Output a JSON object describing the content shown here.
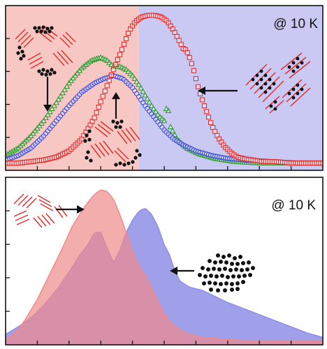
{
  "colors": {
    "red": "#e03030",
    "green": "#2f9a2f",
    "blue": "#3a48d8",
    "bg_red": "#f7c7c3",
    "bg_blue": "#c9c9f4",
    "fill_red": "#f08a8a",
    "fill_blue": "#8e8ee6",
    "black": "#111111"
  },
  "chart_data": [
    {
      "type": "scatter",
      "panel": "top",
      "annotation": "@ 10 K",
      "xlabel": "",
      "ylabel": "",
      "xlim": [
        0,
        1
      ],
      "ylim": [
        0,
        1
      ],
      "shaded_regions": [
        {
          "x": [
            0,
            0.42
          ],
          "color": "#f7c7c3"
        },
        {
          "x": [
            0.42,
            1
          ],
          "color": "#c9c9f4"
        }
      ],
      "series": [
        {
          "marker": "square-open",
          "color": "#e03030",
          "x": [
            0.0,
            0.04,
            0.08,
            0.12,
            0.16,
            0.2,
            0.24,
            0.28,
            0.31,
            0.34,
            0.37,
            0.39,
            0.41,
            0.43,
            0.45,
            0.47,
            0.49,
            0.51,
            0.53,
            0.55,
            0.56,
            0.57,
            0.58,
            0.59,
            0.6,
            0.61,
            0.63,
            0.65,
            0.67,
            0.69,
            0.71,
            0.73,
            0.75,
            0.78,
            0.81,
            0.85,
            0.9,
            0.95,
            1.0
          ],
          "y": [
            0.02,
            0.02,
            0.03,
            0.04,
            0.06,
            0.1,
            0.18,
            0.32,
            0.48,
            0.64,
            0.79,
            0.9,
            0.96,
            0.99,
            1.0,
            1.0,
            0.99,
            0.96,
            0.9,
            0.82,
            0.78,
            0.77,
            0.72,
            0.66,
            0.58,
            0.5,
            0.38,
            0.27,
            0.19,
            0.13,
            0.09,
            0.06,
            0.05,
            0.04,
            0.03,
            0.03,
            0.02,
            0.02,
            0.02
          ]
        },
        {
          "marker": "triangle-open",
          "color": "#2f9a2f",
          "x": [
            0.0,
            0.04,
            0.08,
            0.12,
            0.16,
            0.2,
            0.24,
            0.27,
            0.3,
            0.32,
            0.34,
            0.36,
            0.38,
            0.4,
            0.42,
            0.44,
            0.46,
            0.48,
            0.5,
            0.51,
            0.52,
            0.54,
            0.57,
            0.61,
            0.66,
            0.72,
            0.8,
            0.9,
            1.0
          ],
          "y": [
            0.07,
            0.12,
            0.2,
            0.3,
            0.42,
            0.55,
            0.65,
            0.7,
            0.72,
            0.7,
            0.66,
            0.66,
            0.64,
            0.6,
            0.54,
            0.47,
            0.4,
            0.34,
            0.3,
            0.42,
            0.26,
            0.18,
            0.12,
            0.08,
            0.05,
            0.03,
            0.02,
            0.02,
            0.02
          ]
        },
        {
          "marker": "circle-open",
          "color": "#3a48d8",
          "x": [
            0.0,
            0.04,
            0.08,
            0.12,
            0.16,
            0.2,
            0.24,
            0.28,
            0.31,
            0.34,
            0.37,
            0.4,
            0.42,
            0.44,
            0.47,
            0.5,
            0.53,
            0.56,
            0.6,
            0.65,
            0.7,
            0.76,
            0.84,
            0.92,
            1.0
          ],
          "y": [
            0.04,
            0.07,
            0.12,
            0.2,
            0.3,
            0.4,
            0.49,
            0.55,
            0.58,
            0.6,
            0.58,
            0.52,
            0.46,
            0.4,
            0.32,
            0.24,
            0.18,
            0.14,
            0.1,
            0.07,
            0.05,
            0.04,
            0.03,
            0.02,
            0.02
          ]
        }
      ],
      "annotations": [
        {
          "icon": "mixed-domain-icon",
          "arrow": "down"
        },
        {
          "icon": "mixed-domain-icon",
          "arrow": "up"
        },
        {
          "icon": "striped-domain-icon",
          "arrow": "left"
        }
      ]
    },
    {
      "type": "area",
      "panel": "bottom",
      "annotation": "@ 10 K",
      "xlabel": "",
      "ylabel": "",
      "xlim": [
        0,
        1
      ],
      "ylim": [
        0,
        1
      ],
      "series": [
        {
          "color": "#f08a8a",
          "x": [
            0.0,
            0.03,
            0.06,
            0.1,
            0.14,
            0.18,
            0.21,
            0.24,
            0.26,
            0.28,
            0.3,
            0.32,
            0.34,
            0.36,
            0.38,
            0.4,
            0.42,
            0.44,
            0.46,
            0.48,
            0.5,
            0.52,
            0.55,
            0.58,
            0.62,
            0.68,
            0.75,
            0.85,
            1.0
          ],
          "y": [
            0.02,
            0.06,
            0.14,
            0.28,
            0.45,
            0.62,
            0.76,
            0.86,
            0.92,
            0.97,
            1.0,
            0.99,
            0.94,
            0.84,
            0.72,
            0.6,
            0.5,
            0.44,
            0.36,
            0.27,
            0.19,
            0.13,
            0.08,
            0.05,
            0.03,
            0.02,
            0.01,
            0.01,
            0.01
          ]
        },
        {
          "color": "#8e8ee6",
          "x": [
            0.0,
            0.04,
            0.08,
            0.12,
            0.16,
            0.2,
            0.23,
            0.26,
            0.28,
            0.3,
            0.32,
            0.34,
            0.36,
            0.38,
            0.4,
            0.42,
            0.44,
            0.46,
            0.48,
            0.5,
            0.52,
            0.53,
            0.55,
            0.58,
            0.62,
            0.66,
            0.7,
            0.75,
            0.8,
            0.85,
            0.9,
            0.95,
            1.0
          ],
          "y": [
            0.05,
            0.1,
            0.16,
            0.24,
            0.34,
            0.46,
            0.56,
            0.64,
            0.72,
            0.72,
            0.62,
            0.52,
            0.6,
            0.72,
            0.8,
            0.86,
            0.88,
            0.84,
            0.76,
            0.64,
            0.56,
            0.48,
            0.4,
            0.36,
            0.34,
            0.3,
            0.26,
            0.22,
            0.18,
            0.14,
            0.1,
            0.06,
            0.03
          ]
        }
      ],
      "annotations": [
        {
          "icon": "striped-domain-icon",
          "arrow": "right"
        },
        {
          "icon": "dot-cluster-icon",
          "arrow": "left"
        }
      ]
    }
  ]
}
